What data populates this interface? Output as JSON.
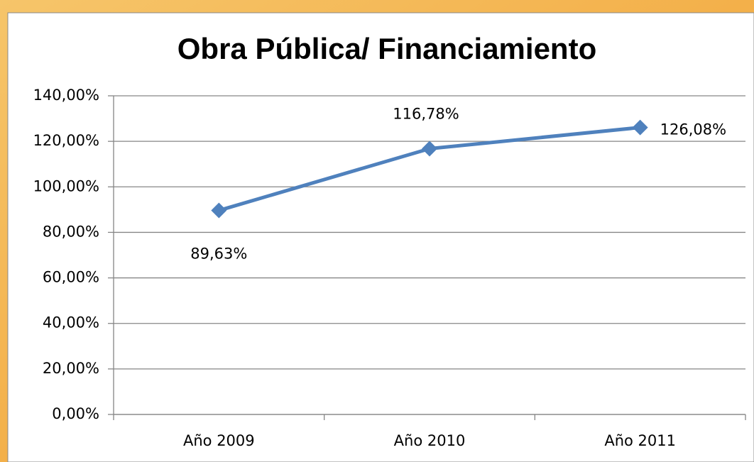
{
  "chart_data": {
    "type": "line",
    "title": "Obra Pública/ Financiamiento",
    "categories": [
      "Año 2009",
      "Año 2010",
      "Año 2011"
    ],
    "series": [
      {
        "name": "Obra Pública/ Financiamiento",
        "color": "#4f81bd",
        "values": [
          89.63,
          116.78,
          126.08
        ],
        "value_labels": [
          "89,63%",
          "116,78%",
          "126,08%"
        ]
      }
    ],
    "ylim": [
      0,
      140
    ],
    "yticks": [
      {
        "value": 0,
        "label": "0,00%"
      },
      {
        "value": 20,
        "label": "20,00%"
      },
      {
        "value": 40,
        "label": "40,00%"
      },
      {
        "value": 60,
        "label": "60,00%"
      },
      {
        "value": 80,
        "label": "80,00%"
      },
      {
        "value": 100,
        "label": "100,00%"
      },
      {
        "value": 120,
        "label": "120,00%"
      },
      {
        "value": 140,
        "label": "140,00%"
      }
    ],
    "grid": true
  }
}
